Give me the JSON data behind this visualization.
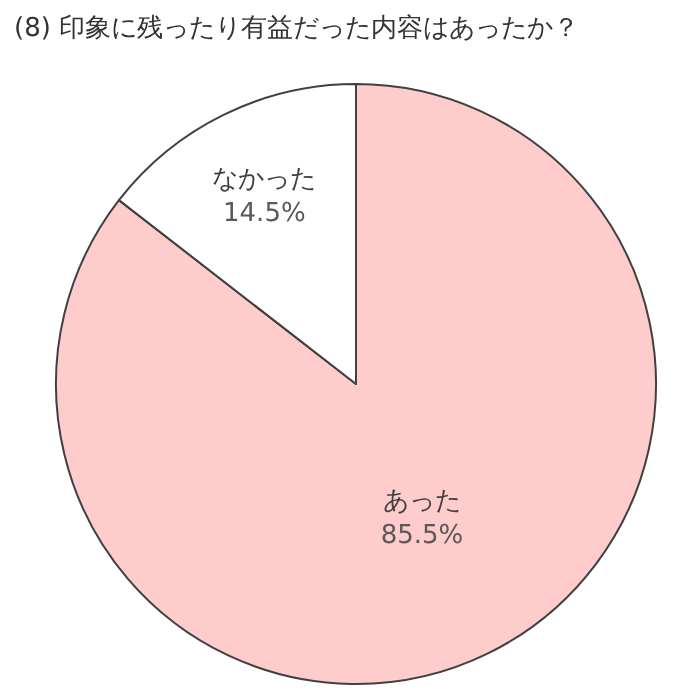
{
  "chart_data": {
    "type": "pie",
    "title": "(8) 印象に残ったり有益だった内容はあったか？",
    "categories": [
      "あった",
      "なかった"
    ],
    "values": [
      85.5,
      14.5
    ],
    "value_labels": [
      "85.5%",
      "14.5%"
    ],
    "colors": [
      "#ffcccc",
      "#ffffff"
    ],
    "legend": false
  }
}
